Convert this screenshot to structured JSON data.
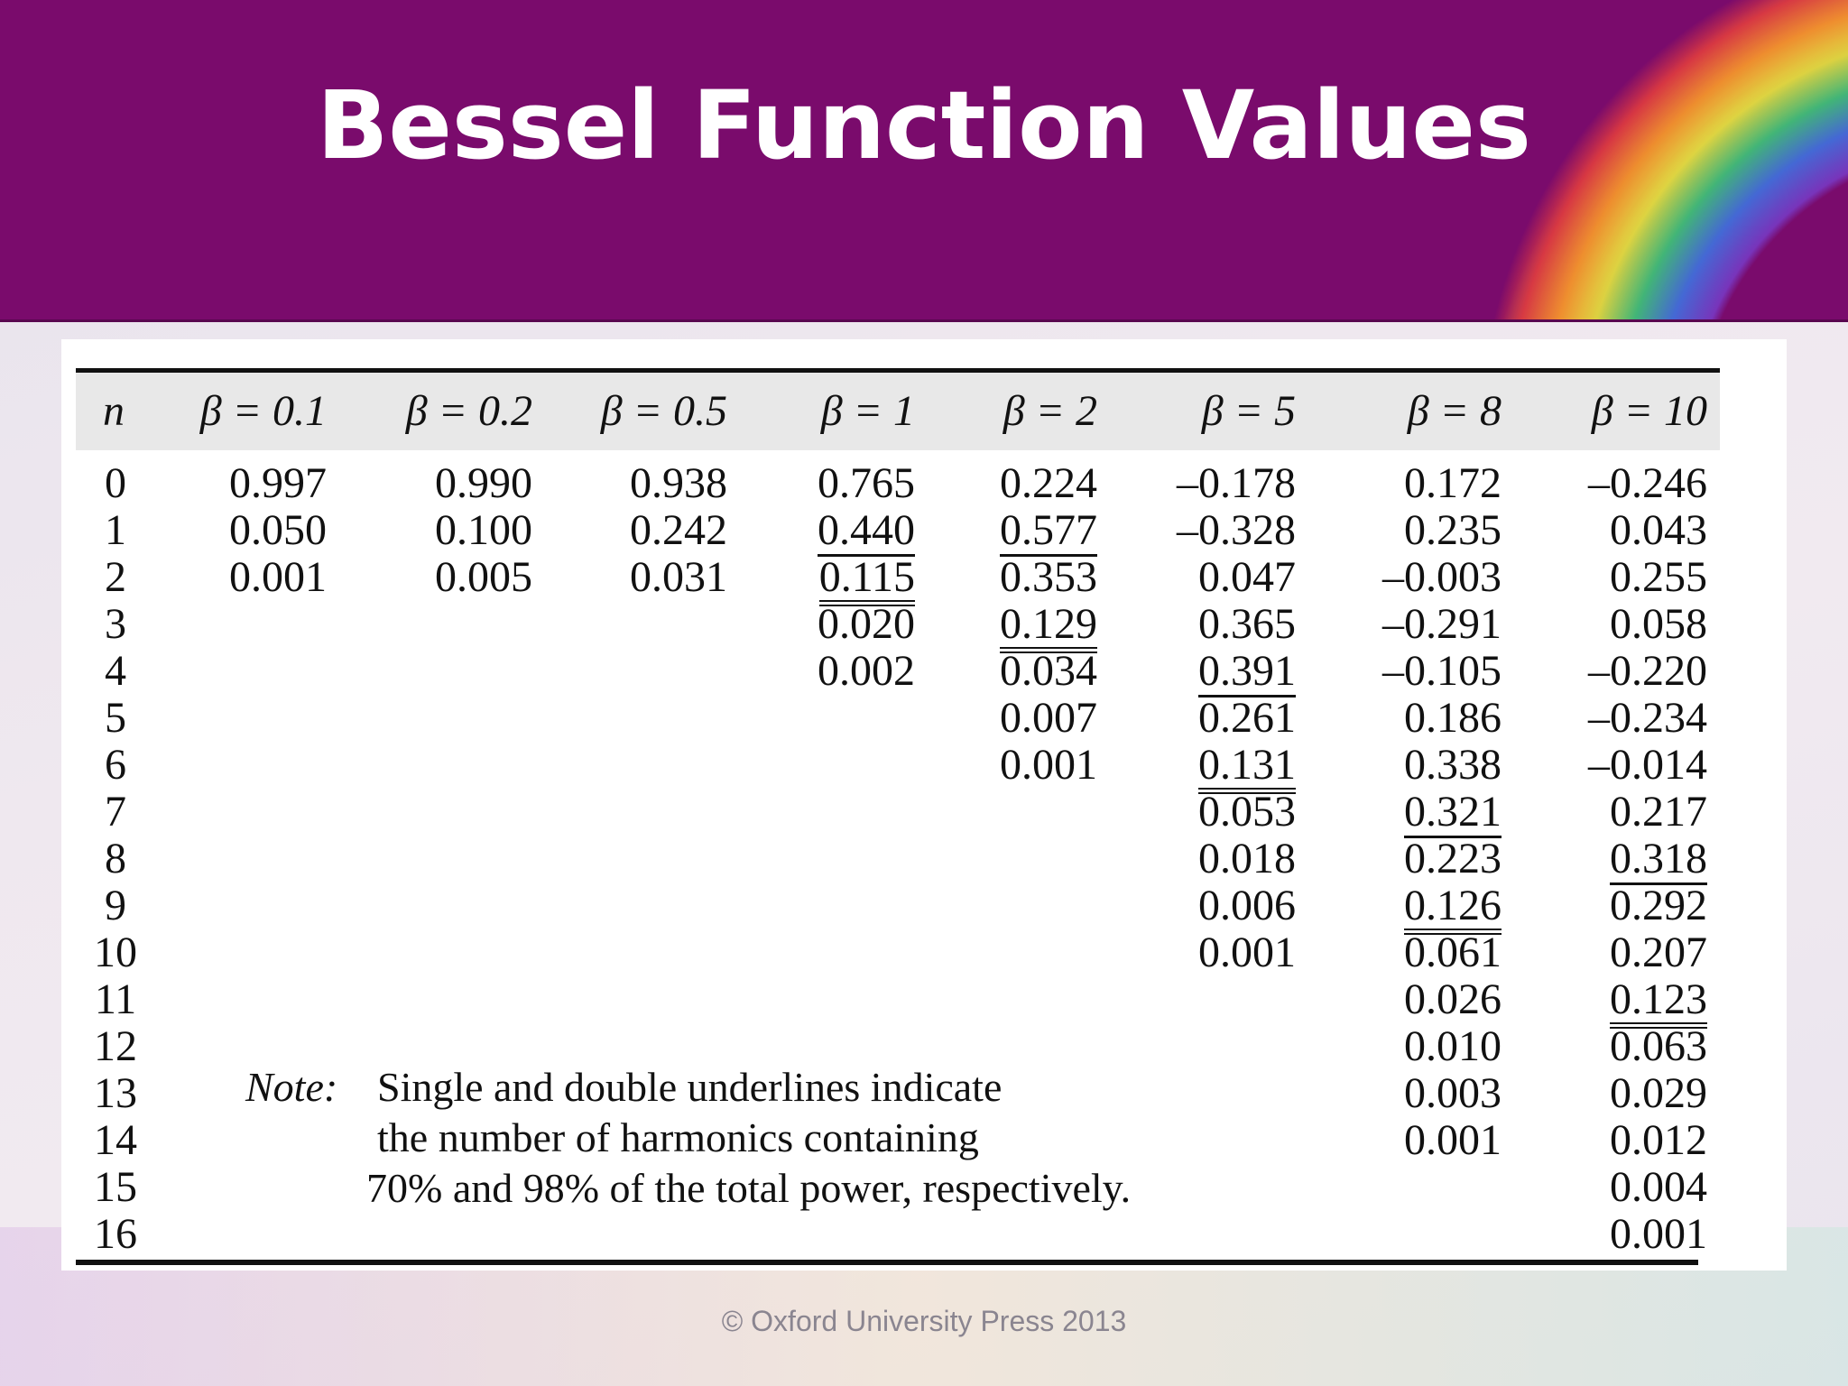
{
  "title": "Bessel Function Values",
  "columns": [
    "n",
    "β = 0.1",
    "β = 0.2",
    "β = 0.5",
    "β = 1",
    "β = 2",
    "β = 5",
    "β = 8",
    "β = 10"
  ],
  "n_values": [
    "0",
    "1",
    "2",
    "3",
    "4",
    "5",
    "6",
    "7",
    "8",
    "9",
    "10",
    "11",
    "12",
    "13",
    "14",
    "15",
    "16"
  ],
  "beta_0_1": [
    "0.997",
    "0.050",
    "0.001"
  ],
  "beta_0_2": [
    "0.990",
    "0.100",
    "0.005"
  ],
  "beta_0_5": [
    "0.938",
    "0.242",
    "0.031"
  ],
  "beta_1": [
    "0.765",
    "0.440",
    "0.115",
    "0.020",
    "0.002"
  ],
  "beta_2": [
    "0.224",
    "0.577",
    "0.353",
    "0.129",
    "0.034",
    "0.007",
    "0.001"
  ],
  "beta_5": [
    "–0.178",
    "–0.328",
    "0.047",
    "0.365",
    "0.391",
    "0.261",
    "0.131",
    "0.053",
    "0.018",
    "0.006",
    "0.001"
  ],
  "beta_8": [
    "0.172",
    "0.235",
    "–0.003",
    "–0.291",
    "–0.105",
    "0.186",
    "0.338",
    "0.321",
    "0.223",
    "0.126",
    "0.061",
    "0.026",
    "0.010",
    "0.003",
    "0.001"
  ],
  "beta_10": [
    "–0.246",
    "0.043",
    "0.255",
    "0.058",
    "–0.220",
    "–0.234",
    "–0.014",
    "0.217",
    "0.318",
    "0.292",
    "0.207",
    "0.123",
    "0.063",
    "0.029",
    "0.012",
    "0.004",
    "0.001"
  ],
  "underlines": {
    "single": {
      "beta_1": [
        1
      ],
      "beta_2": [
        1
      ],
      "beta_5": [
        4
      ],
      "beta_8": [
        7
      ],
      "beta_10": [
        8
      ]
    },
    "double": {
      "beta_1": [
        2
      ],
      "beta_2": [
        3
      ],
      "beta_5": [
        6
      ],
      "beta_8": [
        9
      ],
      "beta_10": [
        11
      ]
    }
  },
  "note": {
    "label": "Note:",
    "lines": [
      "Single and double underlines indicate",
      "the number of harmonics containing",
      "70% and 98% of the total power, respectively."
    ]
  },
  "footer": "© Oxford University Press 2013"
}
